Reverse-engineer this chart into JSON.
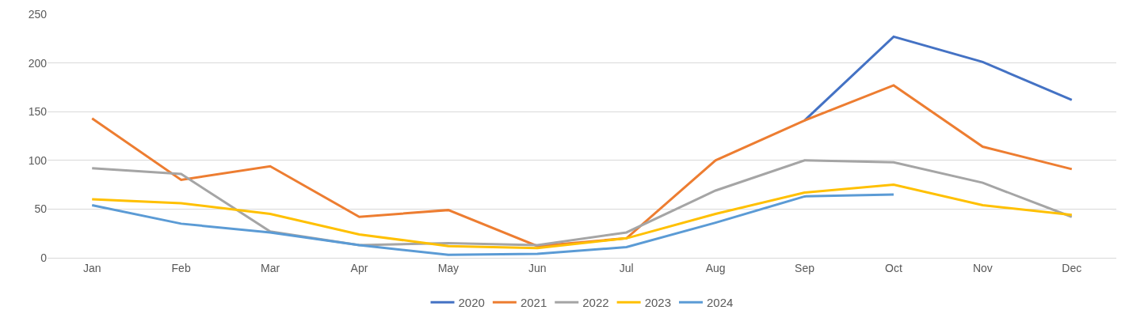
{
  "chart_data": {
    "type": "line",
    "categories": [
      "Jan",
      "Feb",
      "Mar",
      "Apr",
      "May",
      "Jun",
      "Jul",
      "Aug",
      "Sep",
      "Oct",
      "Nov",
      "Dec"
    ],
    "series": [
      {
        "name": "2020",
        "color": "#4472c4",
        "values": [
          null,
          null,
          null,
          null,
          null,
          null,
          null,
          null,
          141,
          227,
          201,
          162
        ]
      },
      {
        "name": "2021",
        "color": "#ed7d31",
        "values": [
          143,
          80,
          94,
          42,
          49,
          12,
          20,
          100,
          141,
          177,
          114,
          91
        ]
      },
      {
        "name": "2022",
        "color": "#a5a5a5",
        "values": [
          92,
          86,
          27,
          13,
          15,
          13,
          26,
          69,
          100,
          98,
          77,
          42
        ]
      },
      {
        "name": "2023",
        "color": "#ffc000",
        "values": [
          60,
          56,
          45,
          24,
          12,
          10,
          20,
          45,
          67,
          75,
          54,
          44
        ]
      },
      {
        "name": "2024",
        "color": "#5b9bd5",
        "values": [
          54,
          35,
          26,
          13,
          3,
          4,
          11,
          36,
          63,
          65,
          null,
          null
        ]
      }
    ],
    "ylim": [
      0,
      250
    ],
    "yticks": [
      0,
      50,
      100,
      150,
      200,
      250
    ],
    "grid": "y",
    "legend": "bottom",
    "marker": "none",
    "line_style": "solid"
  }
}
